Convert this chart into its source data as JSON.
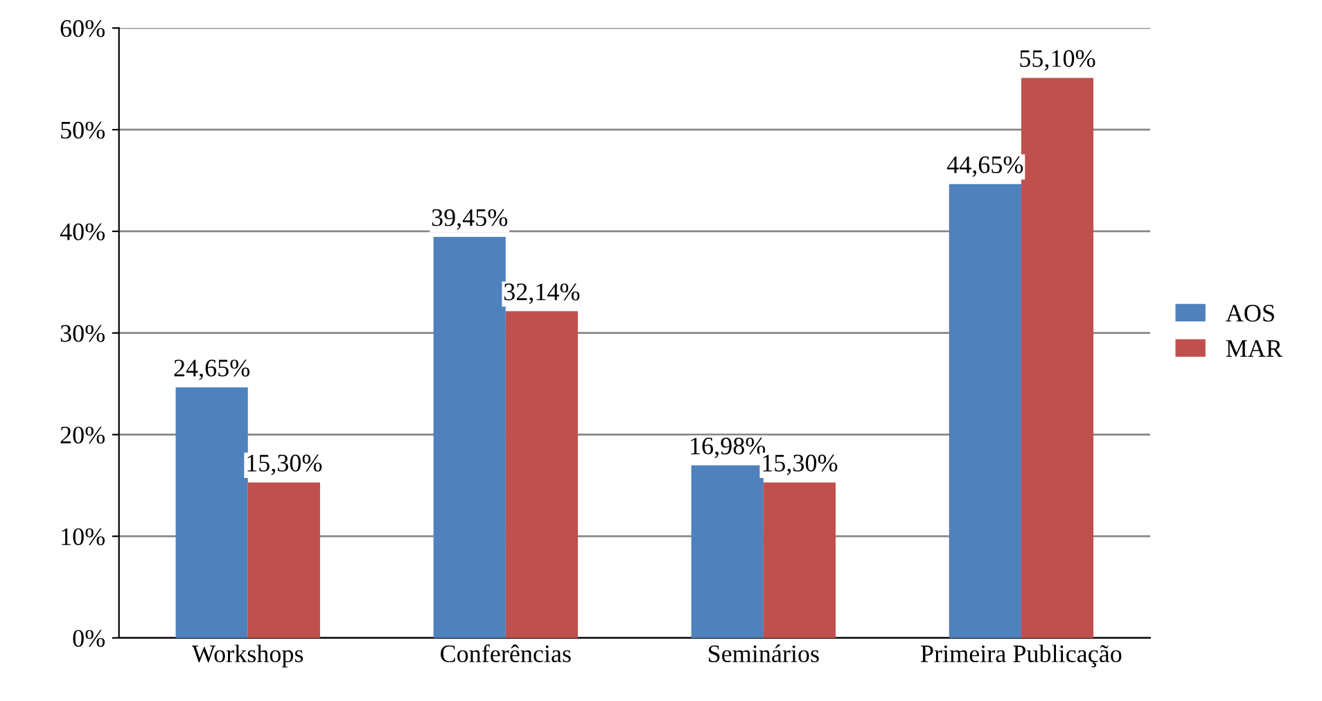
{
  "chart_data": {
    "type": "bar",
    "categories": [
      "Workshops",
      "Conferências",
      "Seminários",
      "Primeira Publicação"
    ],
    "series": [
      {
        "name": "AOS",
        "color": "#4f81bd",
        "values": [
          24.65,
          39.45,
          16.98,
          44.65
        ],
        "value_labels": [
          "24,65%",
          "39,45%",
          "16,98%",
          "44,65%"
        ]
      },
      {
        "name": "MAR",
        "color": "#c0504d",
        "values": [
          15.3,
          32.14,
          15.3,
          55.1
        ],
        "value_labels": [
          "15,30%",
          "32,14%",
          "15,30%",
          "55,10%"
        ]
      }
    ],
    "ylim": [
      0,
      60
    ],
    "yticks": [
      {
        "value": 0,
        "label": "0%"
      },
      {
        "value": 10,
        "label": "10%"
      },
      {
        "value": 20,
        "label": "20%"
      },
      {
        "value": 30,
        "label": "30%"
      },
      {
        "value": 40,
        "label": "40%"
      },
      {
        "value": 50,
        "label": "50%"
      },
      {
        "value": 60,
        "label": "60%"
      }
    ],
    "grid": "y",
    "legend": "right"
  }
}
